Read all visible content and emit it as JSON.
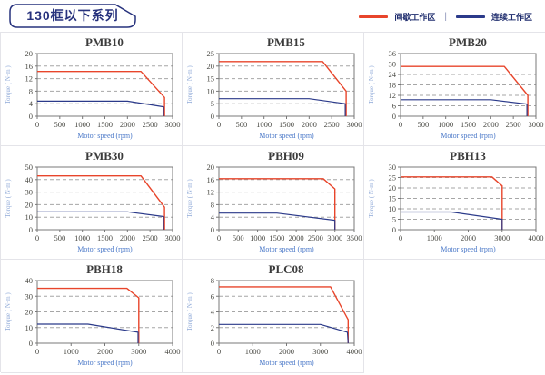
{
  "page": {
    "badge_title": "130框以下系列"
  },
  "legend": {
    "separator": "|",
    "items": [
      {
        "label": "间歇工作区",
        "color": "#e8452b"
      },
      {
        "label": "连续工作区",
        "color": "#2b3a8a"
      }
    ]
  },
  "colors": {
    "navy_text": "#27327d",
    "plot_border": "#787878",
    "gridline": "#a6a6a6",
    "tick_text": "#4a4a44",
    "xlabel_text": "#4a78c8",
    "ylabel_text": "#90aad8",
    "cell_border": "#e4e4e9"
  },
  "chart_data": [
    {
      "type": "line",
      "title": "PMB10",
      "xlabel": "Motor speed (rpm)",
      "ylabel": "Torque ( N·m )",
      "xlim": [
        0,
        3000
      ],
      "xticks": [
        0,
        500,
        1000,
        1500,
        2000,
        2500,
        3000
      ],
      "ylim": [
        0,
        20
      ],
      "yticks": [
        0,
        4,
        8,
        12,
        16,
        20
      ],
      "grid": "horizontal-dashed",
      "legend_position": "none",
      "series": [
        {
          "name": "间歇工作区",
          "zone": 0,
          "points": [
            [
              0,
              14.3
            ],
            [
              2300,
              14.3
            ],
            [
              2820,
              6
            ],
            [
              2820,
              0
            ]
          ]
        },
        {
          "name": "连续工作区",
          "zone": 1,
          "points": [
            [
              0,
              4.8
            ],
            [
              2000,
              4.8
            ],
            [
              2800,
              3
            ],
            [
              2800,
              0
            ]
          ]
        }
      ]
    },
    {
      "type": "line",
      "title": "PMB15",
      "xlabel": "Motor speed (rpm)",
      "ylabel": "Torque ( N·m )",
      "xlim": [
        0,
        3000
      ],
      "xticks": [
        0,
        500,
        1000,
        1500,
        2000,
        2500,
        3000
      ],
      "ylim": [
        0,
        25
      ],
      "yticks": [
        0,
        5,
        10,
        15,
        20,
        25
      ],
      "grid": "horizontal-dashed",
      "legend_position": "none",
      "series": [
        {
          "name": "间歇工作区",
          "zone": 0,
          "points": [
            [
              0,
              21.8
            ],
            [
              2300,
              21.8
            ],
            [
              2820,
              10
            ],
            [
              2820,
              0
            ]
          ]
        },
        {
          "name": "连续工作区",
          "zone": 1,
          "points": [
            [
              0,
              7
            ],
            [
              2000,
              7
            ],
            [
              2800,
              5
            ],
            [
              2800,
              0
            ]
          ]
        }
      ]
    },
    {
      "type": "line",
      "title": "PMB20",
      "xlabel": "Motor speed (rpm)",
      "ylabel": "Torque ( N·m )",
      "xlim": [
        0,
        3000
      ],
      "xticks": [
        0,
        500,
        1000,
        1500,
        2000,
        2500,
        3000
      ],
      "ylim": [
        0,
        36
      ],
      "yticks": [
        0,
        6,
        12,
        18,
        24,
        30,
        36
      ],
      "grid": "horizontal-dashed",
      "legend_position": "none",
      "series": [
        {
          "name": "间歇工作区",
          "zone": 0,
          "points": [
            [
              0,
              28.6
            ],
            [
              2300,
              28.6
            ],
            [
              2820,
              12
            ],
            [
              2820,
              0
            ]
          ]
        },
        {
          "name": "连续工作区",
          "zone": 1,
          "points": [
            [
              0,
              9.5
            ],
            [
              2000,
              9.5
            ],
            [
              2800,
              7
            ],
            [
              2800,
              0
            ]
          ]
        }
      ]
    },
    {
      "type": "line",
      "title": "PMB30",
      "xlabel": "Motor speed (rpm)",
      "ylabel": "Torque ( N·m )",
      "xlim": [
        0,
        3000
      ],
      "xticks": [
        0,
        500,
        1000,
        1500,
        2000,
        2500,
        3000
      ],
      "ylim": [
        0,
        50
      ],
      "yticks": [
        0,
        10,
        20,
        30,
        40,
        50
      ],
      "grid": "horizontal-dashed",
      "legend_position": "none",
      "series": [
        {
          "name": "间歇工作区",
          "zone": 0,
          "points": [
            [
              0,
              43
            ],
            [
              2300,
              43
            ],
            [
              2820,
              18
            ],
            [
              2820,
              0
            ]
          ]
        },
        {
          "name": "连续工作区",
          "zone": 1,
          "points": [
            [
              0,
              14.3
            ],
            [
              2000,
              14.3
            ],
            [
              2800,
              10.5
            ],
            [
              2800,
              0
            ]
          ]
        }
      ]
    },
    {
      "type": "line",
      "title": "PBH09",
      "xlabel": "Motor speed (rpm)",
      "ylabel": "Torque ( N·m )",
      "xlim": [
        0,
        3500
      ],
      "xticks": [
        0,
        500,
        1000,
        1500,
        2000,
        2500,
        3000,
        3500
      ],
      "ylim": [
        0,
        20
      ],
      "yticks": [
        0,
        4,
        8,
        12,
        16,
        20
      ],
      "grid": "horizontal-dashed",
      "legend_position": "none",
      "series": [
        {
          "name": "间歇工作区",
          "zone": 0,
          "points": [
            [
              0,
              16.3
            ],
            [
              2700,
              16.3
            ],
            [
              3000,
              13
            ],
            [
              3000,
              0
            ]
          ]
        },
        {
          "name": "连续工作区",
          "zone": 1,
          "points": [
            [
              0,
              5.3
            ],
            [
              1500,
              5.3
            ],
            [
              3000,
              3
            ],
            [
              3000,
              0
            ]
          ]
        }
      ]
    },
    {
      "type": "line",
      "title": "PBH13",
      "xlabel": "Motor speed (rpm)",
      "ylabel": "Torque ( N·m )",
      "xlim": [
        0,
        4000
      ],
      "xticks": [
        0,
        1000,
        2000,
        3000,
        4000
      ],
      "ylim": [
        0,
        30
      ],
      "yticks": [
        0,
        5,
        10,
        15,
        20,
        25,
        30
      ],
      "grid": "horizontal-dashed",
      "legend_position": "none",
      "series": [
        {
          "name": "间歇工作区",
          "zone": 0,
          "points": [
            [
              0,
              25.3
            ],
            [
              2700,
              25.3
            ],
            [
              3000,
              21
            ],
            [
              3000,
              0
            ]
          ]
        },
        {
          "name": "连续工作区",
          "zone": 1,
          "points": [
            [
              0,
              8.5
            ],
            [
              1500,
              8.5
            ],
            [
              3000,
              5
            ],
            [
              3000,
              0
            ]
          ]
        }
      ]
    },
    {
      "type": "line",
      "title": "PBH18",
      "xlabel": "Motor speed (rpm)",
      "ylabel": "Torque ( N·m )",
      "xlim": [
        0,
        4000
      ],
      "xticks": [
        0,
        1000,
        2000,
        3000,
        4000
      ],
      "ylim": [
        0,
        40
      ],
      "yticks": [
        0,
        10,
        20,
        30,
        40
      ],
      "grid": "horizontal-dashed",
      "legend_position": "none",
      "series": [
        {
          "name": "间歇工作区",
          "zone": 0,
          "points": [
            [
              0,
              35
            ],
            [
              2650,
              35
            ],
            [
              3000,
              29
            ],
            [
              3000,
              0
            ]
          ]
        },
        {
          "name": "连续工作区",
          "zone": 1,
          "points": [
            [
              0,
              12.2
            ],
            [
              1500,
              12.2
            ],
            [
              2980,
              7
            ],
            [
              2980,
              0
            ]
          ]
        }
      ]
    },
    {
      "type": "line",
      "title": "PLC08",
      "xlabel": "Motor speed (rpm)",
      "ylabel": "Torque ( N·m )",
      "xlim": [
        0,
        4000
      ],
      "xticks": [
        0,
        1000,
        2000,
        3000,
        4000
      ],
      "ylim": [
        0,
        8
      ],
      "yticks": [
        0,
        2,
        4,
        6,
        8
      ],
      "grid": "horizontal-dashed",
      "legend_position": "none",
      "series": [
        {
          "name": "间歇工作区",
          "zone": 0,
          "points": [
            [
              0,
              7.2
            ],
            [
              3300,
              7.2
            ],
            [
              3820,
              3
            ],
            [
              3820,
              0
            ]
          ]
        },
        {
          "name": "连续工作区",
          "zone": 1,
          "points": [
            [
              0,
              2.4
            ],
            [
              3000,
              2.4
            ],
            [
              3800,
              1.4
            ],
            [
              3820,
              0
            ]
          ]
        }
      ]
    }
  ]
}
